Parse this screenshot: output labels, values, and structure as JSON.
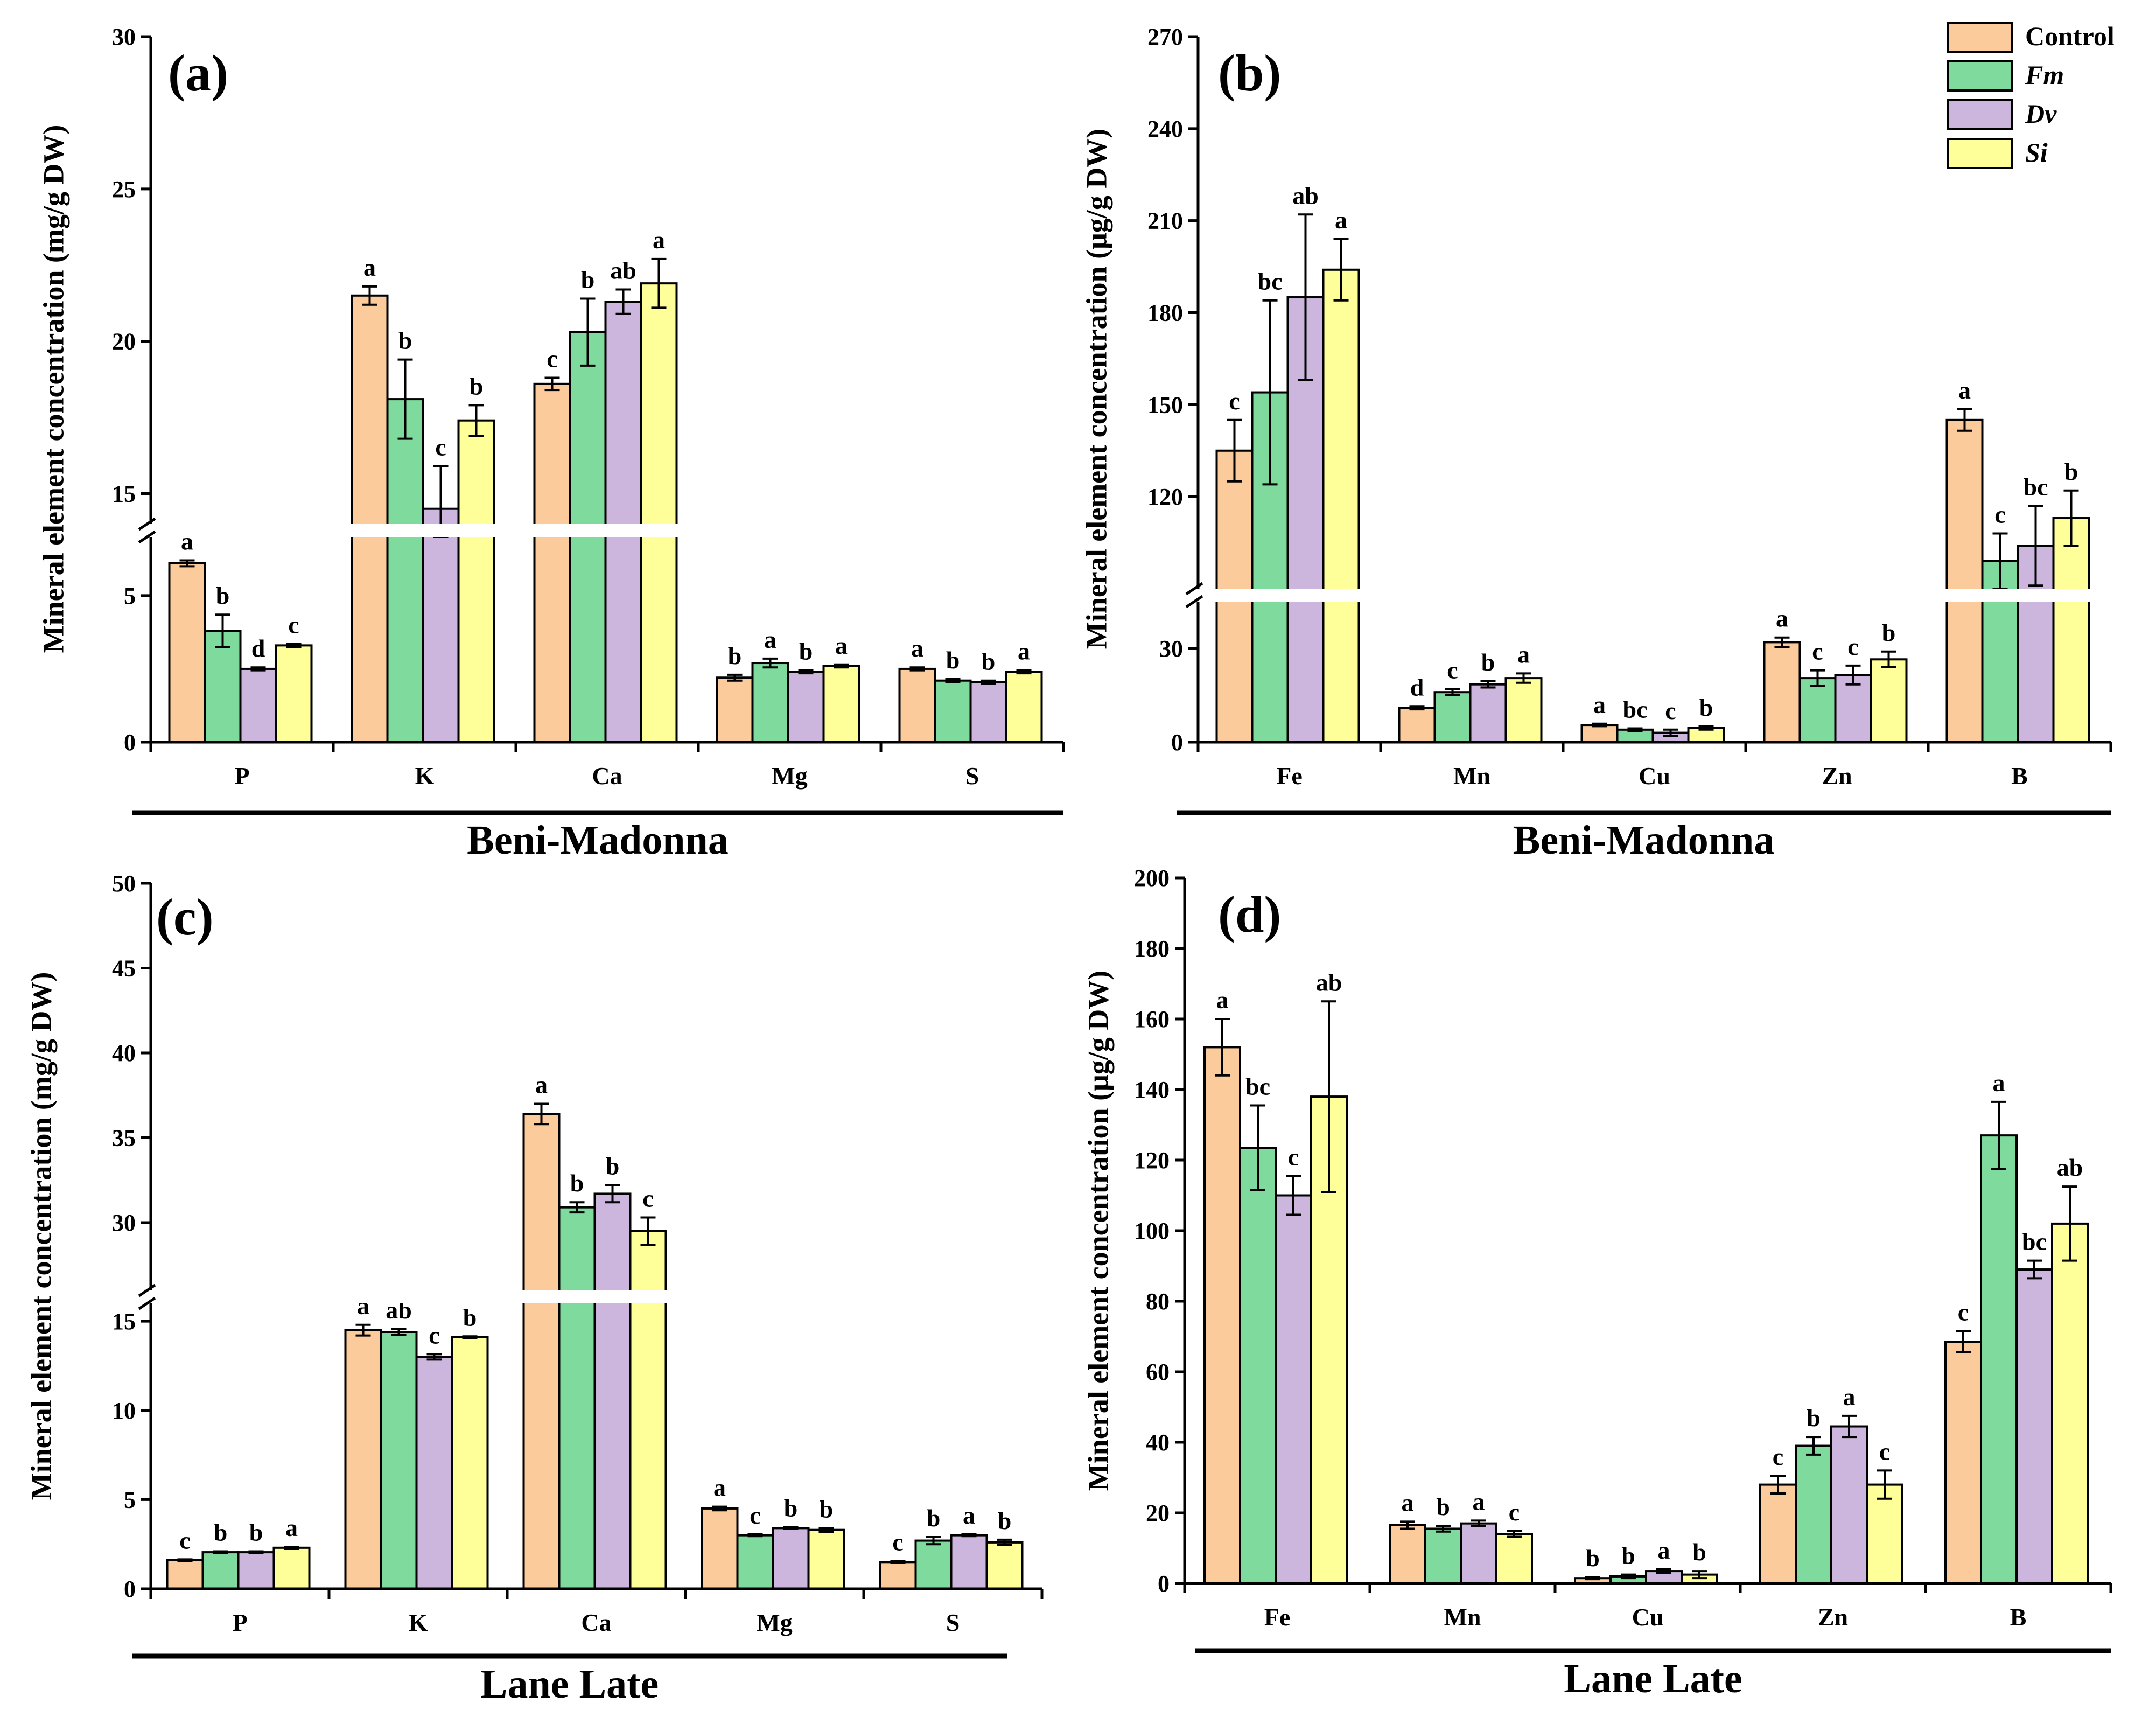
{
  "colors": {
    "Control": "#FBCB9C",
    "Fm": "#7FDB9D",
    "Dv": "#CDB6DE",
    "Si": "#FFFF99"
  },
  "legend": {
    "entries": [
      {
        "key": "Control",
        "label": "Control",
        "italic": false
      },
      {
        "key": "Fm",
        "label": "Fm",
        "italic": true
      },
      {
        "key": "Dv",
        "label": "Dv",
        "italic": true
      },
      {
        "key": "Si",
        "label": "Si",
        "italic": true
      }
    ],
    "position": "top-right"
  },
  "cultivars": {
    "top": "Beni-Madonna",
    "bottom": "Lane Late"
  },
  "chart_data": [
    {
      "panel": "(a)",
      "type": "bar",
      "cultivar": "Beni-Madonna",
      "ylabel": "Mineral element concentration (mg/g DW)",
      "categories": [
        "P",
        "K",
        "Ca",
        "Mg",
        "S"
      ],
      "axis_break": {
        "lower_max": 7,
        "upper_min": 14,
        "upper_max": 30
      },
      "lower_ticks": [
        0,
        5
      ],
      "upper_ticks": [
        15,
        20,
        25,
        30
      ],
      "series": [
        {
          "name": "Control",
          "values": [
            6.1,
            21.5,
            18.6,
            2.2,
            2.5
          ],
          "errors": [
            0.1,
            0.3,
            0.2,
            0.1,
            0.05
          ],
          "letters": [
            "a",
            "a",
            "c",
            "b",
            "a"
          ]
        },
        {
          "name": "Fm",
          "values": [
            3.8,
            18.1,
            20.3,
            2.7,
            2.1
          ],
          "errors": [
            0.55,
            1.3,
            1.1,
            0.15,
            0.05
          ],
          "letters": [
            "b",
            "b",
            "b",
            "a",
            "b"
          ]
        },
        {
          "name": "Dv",
          "values": [
            2.5,
            14.5,
            21.3,
            2.4,
            2.05
          ],
          "errors": [
            0.05,
            1.4,
            0.4,
            0.05,
            0.05
          ],
          "letters": [
            "d",
            "c",
            "ab",
            "b",
            "b"
          ]
        },
        {
          "name": "Si",
          "values": [
            3.3,
            17.4,
            21.9,
            2.6,
            2.4
          ],
          "errors": [
            0.05,
            0.5,
            0.8,
            0.05,
            0.05
          ],
          "letters": [
            "c",
            "b",
            "a",
            "a",
            "a"
          ]
        }
      ]
    },
    {
      "panel": "(b)",
      "type": "bar",
      "cultivar": "Beni-Madonna",
      "ylabel": "Mineral element concentration (μg/g DW)",
      "categories": [
        "Fe",
        "Mn",
        "Cu",
        "Zn",
        "B"
      ],
      "axis_break": {
        "lower_max": 45,
        "upper_min": 90,
        "upper_max": 270
      },
      "lower_ticks": [
        0,
        30
      ],
      "upper_ticks": [
        120,
        150,
        180,
        210,
        240,
        270
      ],
      "series": [
        {
          "name": "Control",
          "values": [
            135,
            11,
            5.5,
            32,
            145
          ],
          "errors": [
            10,
            0.5,
            0.4,
            1.5,
            3.5
          ],
          "letters": [
            "c",
            "d",
            "a",
            "a",
            "a"
          ]
        },
        {
          "name": "Fm",
          "values": [
            154,
            16,
            4,
            20.5,
            99
          ],
          "errors": [
            30,
            1,
            0.4,
            2.5,
            9
          ],
          "letters": [
            "bc",
            "c",
            "bc",
            "c",
            "c"
          ]
        },
        {
          "name": "Dv",
          "values": [
            185,
            18.5,
            3,
            21.5,
            104
          ],
          "errors": [
            27,
            1,
            1,
            3,
            13
          ],
          "letters": [
            "ab",
            "b",
            "c",
            "c",
            "bc"
          ]
        },
        {
          "name": "Si",
          "values": [
            194,
            20.5,
            4.5,
            26.5,
            113
          ],
          "errors": [
            10,
            1.5,
            0.5,
            2.5,
            9
          ],
          "letters": [
            "a",
            "a",
            "b",
            "b",
            "b"
          ]
        }
      ]
    },
    {
      "panel": "(c)",
      "type": "bar",
      "cultivar": "Lane Late",
      "ylabel": "Mineral element concentration (mg/g DW)",
      "categories": [
        "P",
        "K",
        "Ca",
        "Mg",
        "S"
      ],
      "axis_break": {
        "lower_max": 16,
        "upper_min": 26,
        "upper_max": 50
      },
      "lower_ticks": [
        0,
        5,
        10,
        15
      ],
      "upper_ticks": [
        30,
        35,
        40,
        45,
        50
      ],
      "series": [
        {
          "name": "Control",
          "values": [
            1.6,
            14.5,
            36.4,
            4.5,
            1.5
          ],
          "errors": [
            0.05,
            0.3,
            0.6,
            0.1,
            0.05
          ],
          "letters": [
            "c",
            "a",
            "a",
            "a",
            "c"
          ]
        },
        {
          "name": "Fm",
          "values": [
            2.05,
            14.4,
            30.9,
            3.0,
            2.7
          ],
          "errors": [
            0.05,
            0.15,
            0.3,
            0.05,
            0.2
          ],
          "letters": [
            "b",
            "ab",
            "b",
            "c",
            "b"
          ]
        },
        {
          "name": "Dv",
          "values": [
            2.05,
            13.0,
            31.7,
            3.4,
            3.0
          ],
          "errors": [
            0.05,
            0.15,
            0.5,
            0.05,
            0.05
          ],
          "letters": [
            "b",
            "c",
            "b",
            "b",
            "a"
          ]
        },
        {
          "name": "Si",
          "values": [
            2.3,
            14.1,
            29.5,
            3.3,
            2.6
          ],
          "errors": [
            0.05,
            0.05,
            0.8,
            0.1,
            0.15
          ],
          "letters": [
            "a",
            "b",
            "c",
            "b",
            "b"
          ]
        }
      ]
    },
    {
      "panel": "(d)",
      "type": "bar",
      "cultivar": "Lane Late",
      "ylabel": "Mineral element concentration (μg/g DW)",
      "categories": [
        "Fe",
        "Mn",
        "Cu",
        "Zn",
        "B"
      ],
      "ylim": [
        0,
        200
      ],
      "ticks": [
        0,
        20,
        40,
        60,
        80,
        100,
        120,
        140,
        160,
        180,
        200
      ],
      "series": [
        {
          "name": "Control",
          "values": [
            152,
            16.5,
            1.5,
            28,
            68.5
          ],
          "errors": [
            8,
            1,
            0.3,
            2.5,
            3
          ],
          "letters": [
            "a",
            "a",
            "b",
            "c",
            "c"
          ]
        },
        {
          "name": "Fm",
          "values": [
            123.5,
            15.5,
            2,
            39,
            127
          ],
          "errors": [
            12,
            0.8,
            0.5,
            2.5,
            9.5
          ],
          "letters": [
            "bc",
            "b",
            "b",
            "b",
            "a"
          ]
        },
        {
          "name": "Dv",
          "values": [
            110,
            17,
            3.5,
            44.5,
            89
          ],
          "errors": [
            5.5,
            0.8,
            0.5,
            3,
            2.5
          ],
          "letters": [
            "c",
            "a",
            "a",
            "a",
            "bc"
          ]
        },
        {
          "name": "Si",
          "values": [
            138,
            14,
            2.5,
            28,
            102
          ],
          "errors": [
            27,
            0.8,
            1,
            4,
            10.5
          ],
          "letters": [
            "ab",
            "c",
            "b",
            "c",
            "ab"
          ]
        }
      ]
    }
  ]
}
